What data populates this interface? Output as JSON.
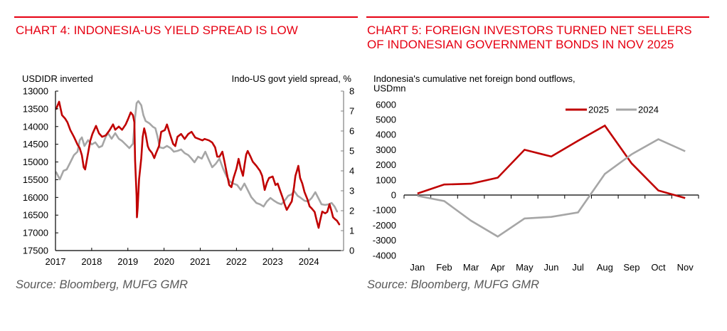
{
  "panels": [
    {
      "title_lines": [
        "CHART 4: INDONESIA-US YIELD SPREAD IS LOW"
      ],
      "source": "Source: Bloomberg, MUFG GMR"
    },
    {
      "title_lines": [
        "CHART 5: FOREIGN INVESTORS TURNED NET SELLERS",
        "OF INDONESIAN GOVERNMENT BONDS IN NOV 2025"
      ],
      "source": "Source: Bloomberg, MUFG GMR"
    }
  ],
  "colors": {
    "title": "#E60012",
    "rule": "#E60012",
    "series_red": "#C00000",
    "series_gray": "#A6A6A6",
    "source_text": "#595959",
    "right_axis": "#808080"
  },
  "chart_data": [
    {
      "type": "line",
      "title": "CHART 4: INDONESIA-US YIELD SPREAD IS LOW",
      "ylabel_left": "USDIDR inverted",
      "ylabel_right": "Indo-US govt yield spread, %",
      "xlabel": "",
      "x_ticks": [
        "2017",
        "2018",
        "2019",
        "2020",
        "2021",
        "2022",
        "2023",
        "2024"
      ],
      "x_tick_values": [
        2017,
        2018,
        2019,
        2020,
        2021,
        2022,
        2023,
        2024
      ],
      "xlim": [
        2017,
        2024.96
      ],
      "ylim_left": [
        13000,
        17500
      ],
      "y_left_inverted": true,
      "y_left_ticks": [
        13000,
        13500,
        14000,
        14500,
        15000,
        15500,
        16000,
        16500,
        17000,
        17500
      ],
      "ylim_right": [
        0,
        8
      ],
      "y_right_ticks": [
        8,
        7,
        6,
        5,
        4,
        3,
        2,
        1,
        0
      ],
      "grid": false,
      "legend": "none",
      "series": [
        {
          "name": "USDIDR inverted",
          "axis": "left",
          "color": "#C00000",
          "points": [
            [
              2017.02,
              13500
            ],
            [
              2017.1,
              13300
            ],
            [
              2017.18,
              13680
            ],
            [
              2017.27,
              13780
            ],
            [
              2017.33,
              13880
            ],
            [
              2017.41,
              14100
            ],
            [
              2017.51,
              14290
            ],
            [
              2017.61,
              14510
            ],
            [
              2017.67,
              14610
            ],
            [
              2017.73,
              14810
            ],
            [
              2017.78,
              15150
            ],
            [
              2017.82,
              15210
            ],
            [
              2017.9,
              14750
            ],
            [
              2017.96,
              14410
            ],
            [
              2018.02,
              14210
            ],
            [
              2018.12,
              13980
            ],
            [
              2018.2,
              14190
            ],
            [
              2018.29,
              14290
            ],
            [
              2018.39,
              14250
            ],
            [
              2018.49,
              14110
            ],
            [
              2018.59,
              13940
            ],
            [
              2018.65,
              14090
            ],
            [
              2018.75,
              14000
            ],
            [
              2018.84,
              14090
            ],
            [
              2018.94,
              13940
            ],
            [
              2019.0,
              13800
            ],
            [
              2019.08,
              13600
            ],
            [
              2019.14,
              13680
            ],
            [
              2019.18,
              13880
            ],
            [
              2019.2,
              14950
            ],
            [
              2019.24,
              15950
            ],
            [
              2019.25,
              16560
            ],
            [
              2019.27,
              16300
            ],
            [
              2019.31,
              15490
            ],
            [
              2019.37,
              14890
            ],
            [
              2019.41,
              14290
            ],
            [
              2019.45,
              14050
            ],
            [
              2019.49,
              14210
            ],
            [
              2019.55,
              14550
            ],
            [
              2019.59,
              14650
            ],
            [
              2019.67,
              14750
            ],
            [
              2019.73,
              14890
            ],
            [
              2019.78,
              14750
            ],
            [
              2019.86,
              14550
            ],
            [
              2019.92,
              14150
            ],
            [
              2020.02,
              14100
            ],
            [
              2020.08,
              13940
            ],
            [
              2020.16,
              14210
            ],
            [
              2020.25,
              14490
            ],
            [
              2020.31,
              14550
            ],
            [
              2020.37,
              14290
            ],
            [
              2020.47,
              14210
            ],
            [
              2020.57,
              14350
            ],
            [
              2020.67,
              14210
            ],
            [
              2020.76,
              14150
            ],
            [
              2020.86,
              14310
            ],
            [
              2020.96,
              14350
            ],
            [
              2021.06,
              14390
            ],
            [
              2021.12,
              14350
            ],
            [
              2021.24,
              14390
            ],
            [
              2021.33,
              14450
            ],
            [
              2021.41,
              14590
            ],
            [
              2021.47,
              14850
            ],
            [
              2021.53,
              14850
            ],
            [
              2021.61,
              14710
            ],
            [
              2021.67,
              14990
            ],
            [
              2021.73,
              15310
            ],
            [
              2021.8,
              15650
            ],
            [
              2021.86,
              15710
            ],
            [
              2021.92,
              15450
            ],
            [
              2022.0,
              15190
            ],
            [
              2022.06,
              14910
            ],
            [
              2022.12,
              15190
            ],
            [
              2022.18,
              15390
            ],
            [
              2022.22,
              15110
            ],
            [
              2022.27,
              14790
            ],
            [
              2022.31,
              14690
            ],
            [
              2022.39,
              14850
            ],
            [
              2022.45,
              14990
            ],
            [
              2022.55,
              15110
            ],
            [
              2022.65,
              15250
            ],
            [
              2022.71,
              15390
            ],
            [
              2022.78,
              15790
            ],
            [
              2022.84,
              15590
            ],
            [
              2022.9,
              15450
            ],
            [
              2023.0,
              15410
            ],
            [
              2023.08,
              15650
            ],
            [
              2023.14,
              15610
            ],
            [
              2023.2,
              15790
            ],
            [
              2023.27,
              15990
            ],
            [
              2023.33,
              16190
            ],
            [
              2023.39,
              16350
            ],
            [
              2023.47,
              16210
            ],
            [
              2023.53,
              16110
            ],
            [
              2023.59,
              15710
            ],
            [
              2023.63,
              15390
            ],
            [
              2023.67,
              15250
            ],
            [
              2023.71,
              15110
            ],
            [
              2023.76,
              15450
            ],
            [
              2023.82,
              15610
            ],
            [
              2023.88,
              15850
            ],
            [
              2023.96,
              16050
            ],
            [
              2024.02,
              16250
            ],
            [
              2024.08,
              16310
            ],
            [
              2024.16,
              16410
            ],
            [
              2024.22,
              16660
            ],
            [
              2024.27,
              16860
            ],
            [
              2024.31,
              16660
            ],
            [
              2024.37,
              16400
            ],
            [
              2024.45,
              16450
            ],
            [
              2024.51,
              16410
            ],
            [
              2024.57,
              16190
            ],
            [
              2024.63,
              16400
            ],
            [
              2024.67,
              16560
            ],
            [
              2024.73,
              16620
            ],
            [
              2024.78,
              16660
            ],
            [
              2024.84,
              16760
            ]
          ]
        },
        {
          "name": "Indo-US govt yield spread, %",
          "axis": "right",
          "color": "#A6A6A6",
          "points": [
            [
              2017.02,
              3.93
            ],
            [
              2017.12,
              3.57
            ],
            [
              2017.22,
              4.0
            ],
            [
              2017.31,
              4.07
            ],
            [
              2017.41,
              4.43
            ],
            [
              2017.51,
              4.79
            ],
            [
              2017.61,
              4.96
            ],
            [
              2017.67,
              5.54
            ],
            [
              2017.73,
              5.68
            ],
            [
              2017.8,
              5.25
            ],
            [
              2017.9,
              5.54
            ],
            [
              2018.0,
              5.32
            ],
            [
              2018.1,
              5.43
            ],
            [
              2018.2,
              5.18
            ],
            [
              2018.29,
              5.25
            ],
            [
              2018.39,
              5.71
            ],
            [
              2018.45,
              5.89
            ],
            [
              2018.55,
              5.61
            ],
            [
              2018.65,
              5.89
            ],
            [
              2018.75,
              5.61
            ],
            [
              2018.84,
              5.5
            ],
            [
              2018.94,
              5.32
            ],
            [
              2019.04,
              5.14
            ],
            [
              2019.14,
              5.36
            ],
            [
              2019.2,
              6.68
            ],
            [
              2019.24,
              7.39
            ],
            [
              2019.29,
              7.5
            ],
            [
              2019.37,
              7.29
            ],
            [
              2019.43,
              6.79
            ],
            [
              2019.49,
              6.5
            ],
            [
              2019.59,
              6.39
            ],
            [
              2019.69,
              6.21
            ],
            [
              2019.76,
              6.14
            ],
            [
              2019.82,
              5.71
            ],
            [
              2019.88,
              5.18
            ],
            [
              2019.98,
              5.14
            ],
            [
              2020.08,
              5.25
            ],
            [
              2020.18,
              5.14
            ],
            [
              2020.27,
              4.96
            ],
            [
              2020.37,
              5.0
            ],
            [
              2020.47,
              5.07
            ],
            [
              2020.57,
              4.89
            ],
            [
              2020.67,
              4.79
            ],
            [
              2020.76,
              4.61
            ],
            [
              2020.84,
              4.43
            ],
            [
              2020.94,
              4.71
            ],
            [
              2021.04,
              4.61
            ],
            [
              2021.14,
              4.96
            ],
            [
              2021.24,
              4.54
            ],
            [
              2021.33,
              4.18
            ],
            [
              2021.43,
              4.36
            ],
            [
              2021.53,
              4.61
            ],
            [
              2021.63,
              4.11
            ],
            [
              2021.73,
              3.71
            ],
            [
              2021.82,
              3.46
            ],
            [
              2021.92,
              3.36
            ],
            [
              2022.02,
              3.29
            ],
            [
              2022.12,
              3.04
            ],
            [
              2022.22,
              3.36
            ],
            [
              2022.31,
              3.04
            ],
            [
              2022.41,
              2.68
            ],
            [
              2022.55,
              2.39
            ],
            [
              2022.65,
              2.32
            ],
            [
              2022.75,
              2.21
            ],
            [
              2022.84,
              2.46
            ],
            [
              2022.94,
              2.64
            ],
            [
              2023.04,
              2.5
            ],
            [
              2023.14,
              2.39
            ],
            [
              2023.24,
              2.32
            ],
            [
              2023.33,
              2.5
            ],
            [
              2023.43,
              2.75
            ],
            [
              2023.53,
              2.82
            ],
            [
              2023.59,
              3.0
            ],
            [
              2023.69,
              2.75
            ],
            [
              2023.78,
              2.64
            ],
            [
              2023.88,
              2.5
            ],
            [
              2023.98,
              2.46
            ],
            [
              2024.08,
              2.64
            ],
            [
              2024.18,
              2.93
            ],
            [
              2024.25,
              2.68
            ],
            [
              2024.35,
              2.32
            ],
            [
              2024.45,
              2.29
            ],
            [
              2024.55,
              2.32
            ],
            [
              2024.63,
              2.39
            ],
            [
              2024.71,
              2.21
            ],
            [
              2024.78,
              1.96
            ]
          ]
        }
      ]
    },
    {
      "type": "line",
      "title": "CHART 5: FOREIGN INVESTORS TURNED NET SELLERS OF INDONESIAN GOVERNMENT BONDS IN NOV 2025",
      "ylabel_lines": [
        "Indonesia's cumulative net foreign bond outflows,",
        "USDmn"
      ],
      "xlabel": "",
      "categories": [
        "Jan",
        "Feb",
        "Mar",
        "Apr",
        "May",
        "Jun",
        "Jul",
        "Aug",
        "Sep",
        "Oct",
        "Nov"
      ],
      "ylim": [
        -4000,
        6000
      ],
      "y_ticks": [
        6000,
        5000,
        4000,
        3000,
        2000,
        1000,
        0,
        -1000,
        -2000,
        -3000,
        -4000
      ],
      "grid": false,
      "legend": "top-right",
      "series": [
        {
          "name": "2025",
          "color": "#C00000",
          "values": [
            100,
            700,
            750,
            1150,
            3000,
            2550,
            3600,
            4600,
            2100,
            300,
            -200
          ]
        },
        {
          "name": "2024",
          "color": "#A6A6A6",
          "values": [
            -50,
            -400,
            -1700,
            -2750,
            -1550,
            -1450,
            -1150,
            1400,
            2700,
            3700,
            2900
          ]
        }
      ]
    }
  ]
}
